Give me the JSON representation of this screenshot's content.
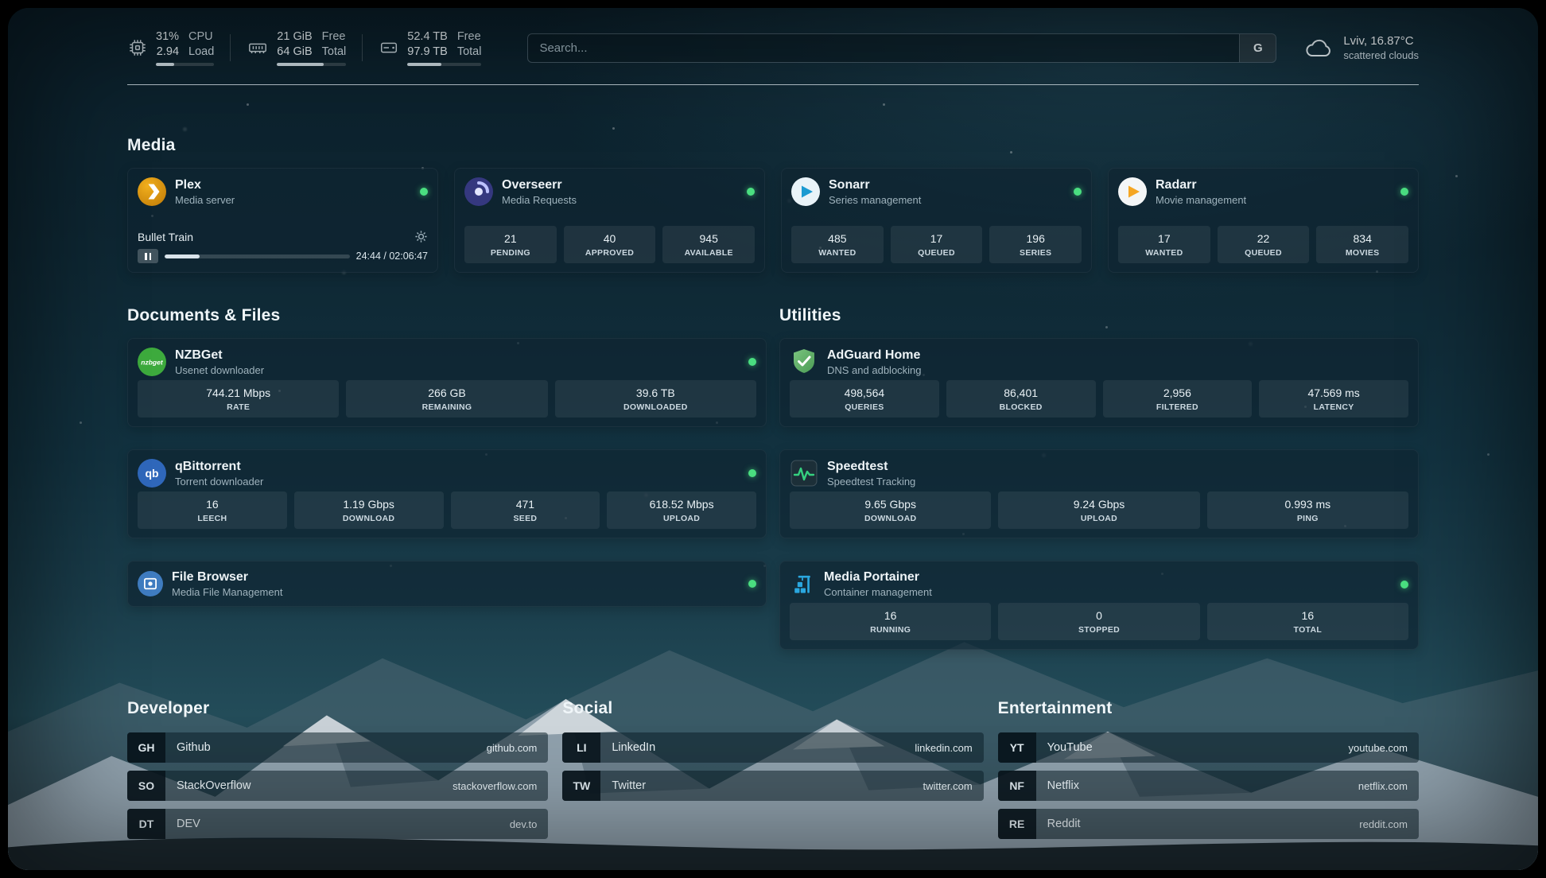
{
  "topbar": {
    "cpu": {
      "icon": "cpu-chip-icon",
      "percent": "31%",
      "load": "2.94",
      "percent_label": "CPU",
      "load_label": "Load",
      "bar": 31
    },
    "memory": {
      "icon": "ram-icon",
      "free": "21 GiB",
      "free_label": "Free",
      "total": "64 GiB",
      "total_label": "Total",
      "bar": 67
    },
    "disk": {
      "icon": "disk-icon",
      "free": "52.4 TB",
      "free_label": "Free",
      "total": "97.9 TB",
      "total_label": "Total",
      "bar": 46
    },
    "search": {
      "placeholder": "Search...",
      "provider_label": "G",
      "provider_icon": "google-g-icon"
    },
    "weather": {
      "icon": "cloud-icon",
      "location": "Lviv, 16.87°C",
      "condition": "scattered clouds"
    }
  },
  "colors": {
    "status_online": "#4ade80",
    "accent_green": "#35d07f"
  },
  "sections": {
    "media": {
      "title": "Media",
      "cards": [
        {
          "icon": "plex-icon",
          "name": "Plex",
          "description": "Media server",
          "status": "online",
          "player": {
            "title": "Bullet Train",
            "time": "24:44 / 02:06:47",
            "progress": 19
          }
        },
        {
          "icon": "overseerr-icon",
          "name": "Overseerr",
          "description": "Media Requests",
          "status": "online",
          "stats": [
            {
              "value": "21",
              "label": "PENDING"
            },
            {
              "value": "40",
              "label": "APPROVED"
            },
            {
              "value": "945",
              "label": "AVAILABLE"
            }
          ]
        },
        {
          "icon": "sonarr-icon",
          "name": "Sonarr",
          "description": "Series management",
          "status": "online",
          "stats": [
            {
              "value": "485",
              "label": "WANTED"
            },
            {
              "value": "17",
              "label": "QUEUED"
            },
            {
              "value": "196",
              "label": "SERIES"
            }
          ]
        },
        {
          "icon": "radarr-icon",
          "name": "Radarr",
          "description": "Movie management",
          "status": "online",
          "stats": [
            {
              "value": "17",
              "label": "WANTED"
            },
            {
              "value": "22",
              "label": "QUEUED"
            },
            {
              "value": "834",
              "label": "MOVIES"
            }
          ]
        }
      ]
    },
    "documents": {
      "title": "Documents & Files",
      "cards": [
        {
          "icon": "nzbget-icon",
          "icon_text": "nzbget",
          "name": "NZBGet",
          "description": "Usenet downloader",
          "status": "online",
          "stats": [
            {
              "value": "744.21 Mbps",
              "label": "RATE"
            },
            {
              "value": "266 GB",
              "label": "REMAINING"
            },
            {
              "value": "39.6 TB",
              "label": "DOWNLOADED"
            }
          ]
        },
        {
          "icon": "qbittorrent-icon",
          "icon_text": "qb",
          "name": "qBittorrent",
          "description": "Torrent downloader",
          "status": "online",
          "stats": [
            {
              "value": "16",
              "label": "LEECH"
            },
            {
              "value": "1.19 Gbps",
              "label": "DOWNLOAD"
            },
            {
              "value": "471",
              "label": "SEED"
            },
            {
              "value": "618.52 Mbps",
              "label": "UPLOAD"
            }
          ]
        },
        {
          "icon": "filebrowser-icon",
          "name": "File Browser",
          "description": "Media File Management",
          "status": "online",
          "stats": []
        }
      ]
    },
    "utilities": {
      "title": "Utilities",
      "cards": [
        {
          "icon": "adguard-icon",
          "name": "AdGuard Home",
          "description": "DNS and adblocking",
          "stats": [
            {
              "value": "498,564",
              "label": "QUERIES"
            },
            {
              "value": "86,401",
              "label": "BLOCKED"
            },
            {
              "value": "2,956",
              "label": "FILTERED"
            },
            {
              "value": "47.569 ms",
              "label": "LATENCY"
            }
          ]
        },
        {
          "icon": "speedtest-icon",
          "name": "Speedtest",
          "description": "Speedtest Tracking",
          "stats": [
            {
              "value": "9.65 Gbps",
              "label": "DOWNLOAD"
            },
            {
              "value": "9.24 Gbps",
              "label": "UPLOAD"
            },
            {
              "value": "0.993 ms",
              "label": "PING"
            }
          ]
        },
        {
          "icon": "portainer-icon",
          "name": "Media Portainer",
          "description": "Container management",
          "status": "online",
          "stats": [
            {
              "value": "16",
              "label": "RUNNING"
            },
            {
              "value": "0",
              "label": "STOPPED"
            },
            {
              "value": "16",
              "label": "TOTAL"
            }
          ]
        }
      ]
    },
    "developer": {
      "title": "Developer",
      "bookmarks": [
        {
          "abbr": "GH",
          "name": "Github",
          "url": "github.com"
        },
        {
          "abbr": "SO",
          "name": "StackOverflow",
          "url": "stackoverflow.com"
        },
        {
          "abbr": "DT",
          "name": "DEV",
          "url": "dev.to"
        }
      ]
    },
    "social": {
      "title": "Social",
      "bookmarks": [
        {
          "abbr": "LI",
          "name": "LinkedIn",
          "url": "linkedin.com"
        },
        {
          "abbr": "TW",
          "name": "Twitter",
          "url": "twitter.com"
        }
      ]
    },
    "entertainment": {
      "title": "Entertainment",
      "bookmarks": [
        {
          "abbr": "YT",
          "name": "YouTube",
          "url": "youtube.com"
        },
        {
          "abbr": "NF",
          "name": "Netflix",
          "url": "netflix.com"
        },
        {
          "abbr": "RE",
          "name": "Reddit",
          "url": "reddit.com"
        }
      ]
    }
  }
}
